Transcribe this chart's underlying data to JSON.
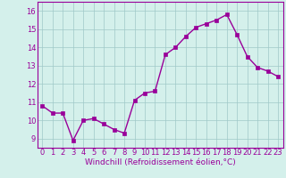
{
  "x": [
    0,
    1,
    2,
    3,
    4,
    5,
    6,
    7,
    8,
    9,
    10,
    11,
    12,
    13,
    14,
    15,
    16,
    17,
    18,
    19,
    20,
    21,
    22,
    23
  ],
  "y": [
    10.8,
    10.4,
    10.4,
    8.9,
    10.0,
    10.1,
    9.8,
    9.5,
    9.3,
    11.1,
    11.5,
    11.6,
    13.6,
    14.0,
    14.6,
    15.1,
    15.3,
    15.5,
    15.8,
    14.7,
    13.5,
    12.9,
    12.7,
    12.4
  ],
  "line_color": "#990099",
  "marker": "s",
  "marker_size": 2.5,
  "line_width": 1.0,
  "bg_color": "#d4f0eb",
  "grid_color": "#a0c8c8",
  "xlabel": "Windchill (Refroidissement éolien,°C)",
  "xlabel_color": "#990099",
  "xlabel_fontsize": 6.5,
  "tick_color": "#990099",
  "tick_fontsize": 6,
  "ylim": [
    8.5,
    16.5
  ],
  "yticks": [
    9,
    10,
    11,
    12,
    13,
    14,
    15,
    16
  ],
  "xlim": [
    -0.5,
    23.5
  ],
  "xticks": [
    0,
    1,
    2,
    3,
    4,
    5,
    6,
    7,
    8,
    9,
    10,
    11,
    12,
    13,
    14,
    15,
    16,
    17,
    18,
    19,
    20,
    21,
    22,
    23
  ]
}
